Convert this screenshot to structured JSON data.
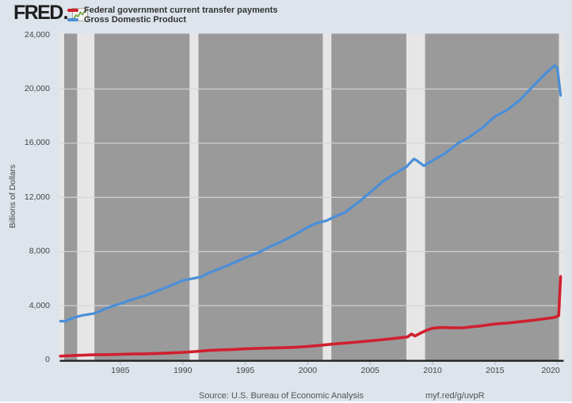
{
  "header": {
    "logo_text": "FRED",
    "logo_suffix": ".",
    "logo_icon": "sparkline-icon",
    "legend": [
      {
        "label": "Federal government current transfer payments",
        "color": "#d0202f"
      },
      {
        "label": "Gross Domestic Product",
        "color": "#4a8fd9"
      }
    ]
  },
  "footer": {
    "source": "Source: U.S. Bureau of Economic Analysis",
    "link": "myf.red/g/uvpR"
  },
  "colors": {
    "page_bg": "#dde4eb",
    "plot_bg": "#9a9a9a",
    "recession_band": "#e6e6e6",
    "gridline": "#d5d5d5",
    "axis_line": "#222222",
    "tick_text": "#454545",
    "red_series": "#d0202f",
    "blue_series": "#4a8fd9"
  },
  "chart_data": {
    "type": "line",
    "title": "",
    "ylabel": "Billions of Dollars",
    "xlabel": "",
    "xlim": [
      1980.15,
      2020.5
    ],
    "ylim": [
      0,
      24000
    ],
    "yticks": [
      0,
      4000,
      8000,
      12000,
      16000,
      20000,
      24000
    ],
    "xticks": [
      1985,
      1990,
      1995,
      2000,
      2005,
      2010,
      2015,
      2020
    ],
    "grid": "horizontal",
    "legend_position": "top-left",
    "plot_bg": "#9a9a9a",
    "recession_band_color": "#e6e6e6",
    "grid_color": "#d5d5d5",
    "axis_color": "#222222",
    "recession_bands": [
      [
        1980.15,
        1980.5
      ],
      [
        1981.54,
        1982.92
      ],
      [
        1990.54,
        1991.25
      ],
      [
        2001.21,
        2001.9
      ],
      [
        2007.9,
        2009.4
      ],
      [
        2020.12,
        2020.5
      ]
    ],
    "series": [
      {
        "id": "transfer-payments",
        "name": "Federal government current transfer payments",
        "color": "#d0202f",
        "width": 3.6,
        "points": [
          [
            1980.2,
            275
          ],
          [
            1981,
            310
          ],
          [
            1982,
            345
          ],
          [
            1983,
            375
          ],
          [
            1984,
            385
          ],
          [
            1985,
            410
          ],
          [
            1986,
            432
          ],
          [
            1987,
            447
          ],
          [
            1988,
            472
          ],
          [
            1989,
            508
          ],
          [
            1990,
            550
          ],
          [
            1991,
            612
          ],
          [
            1992,
            688
          ],
          [
            1993,
            735
          ],
          [
            1994,
            765
          ],
          [
            1995,
            812
          ],
          [
            1996,
            849
          ],
          [
            1997,
            870
          ],
          [
            1998,
            895
          ],
          [
            1999,
            930
          ],
          [
            2000,
            990
          ],
          [
            2001,
            1070
          ],
          [
            2002,
            1165
          ],
          [
            2003,
            1240
          ],
          [
            2004,
            1315
          ],
          [
            2005,
            1405
          ],
          [
            2006,
            1490
          ],
          [
            2007,
            1590
          ],
          [
            2008,
            1690
          ],
          [
            2008.3,
            1905
          ],
          [
            2008.6,
            1760
          ],
          [
            2009,
            1960
          ],
          [
            2009.5,
            2180
          ],
          [
            2010,
            2330
          ],
          [
            2010.75,
            2390
          ],
          [
            2011.5,
            2360
          ],
          [
            2012.5,
            2365
          ],
          [
            2013,
            2425
          ],
          [
            2014,
            2520
          ],
          [
            2015,
            2650
          ],
          [
            2016,
            2720
          ],
          [
            2017,
            2820
          ],
          [
            2018,
            2920
          ],
          [
            2019,
            3040
          ],
          [
            2019.75,
            3130
          ],
          [
            2020.1,
            3260
          ],
          [
            2020.25,
            6150
          ]
        ]
      },
      {
        "id": "gdp",
        "name": "Gross Domestic Product",
        "color": "#4a8fd9",
        "width": 3.2,
        "points": [
          [
            1980.2,
            2860
          ],
          [
            1980.6,
            2850
          ],
          [
            1981,
            3030
          ],
          [
            1981.5,
            3180
          ],
          [
            1982,
            3290
          ],
          [
            1982.9,
            3425
          ],
          [
            1983.5,
            3640
          ],
          [
            1984,
            3850
          ],
          [
            1984.5,
            4000
          ],
          [
            1985,
            4150
          ],
          [
            1986,
            4470
          ],
          [
            1987,
            4750
          ],
          [
            1988,
            5100
          ],
          [
            1989,
            5480
          ],
          [
            1990,
            5860
          ],
          [
            1990.75,
            6000
          ],
          [
            1991.5,
            6140
          ],
          [
            1992,
            6390
          ],
          [
            1993,
            6750
          ],
          [
            1994,
            7130
          ],
          [
            1995,
            7550
          ],
          [
            1996,
            7890
          ],
          [
            1997,
            8360
          ],
          [
            1998,
            8790
          ],
          [
            1999,
            9250
          ],
          [
            2000,
            9800
          ],
          [
            2000.75,
            10100
          ],
          [
            2001.5,
            10270
          ],
          [
            2002,
            10500
          ],
          [
            2003,
            10890
          ],
          [
            2004,
            11590
          ],
          [
            2005,
            12360
          ],
          [
            2006,
            13160
          ],
          [
            2007,
            13760
          ],
          [
            2007.9,
            14250
          ],
          [
            2008.5,
            14840
          ],
          [
            2008.75,
            14710
          ],
          [
            2009.3,
            14330
          ],
          [
            2010,
            14720
          ],
          [
            2011,
            15240
          ],
          [
            2012,
            15970
          ],
          [
            2013,
            16480
          ],
          [
            2014,
            17140
          ],
          [
            2015,
            17970
          ],
          [
            2016,
            18470
          ],
          [
            2017,
            19190
          ],
          [
            2018,
            20160
          ],
          [
            2019,
            21100
          ],
          [
            2019.75,
            21730
          ],
          [
            2020,
            21560
          ],
          [
            2020.25,
            19520
          ]
        ]
      }
    ]
  }
}
